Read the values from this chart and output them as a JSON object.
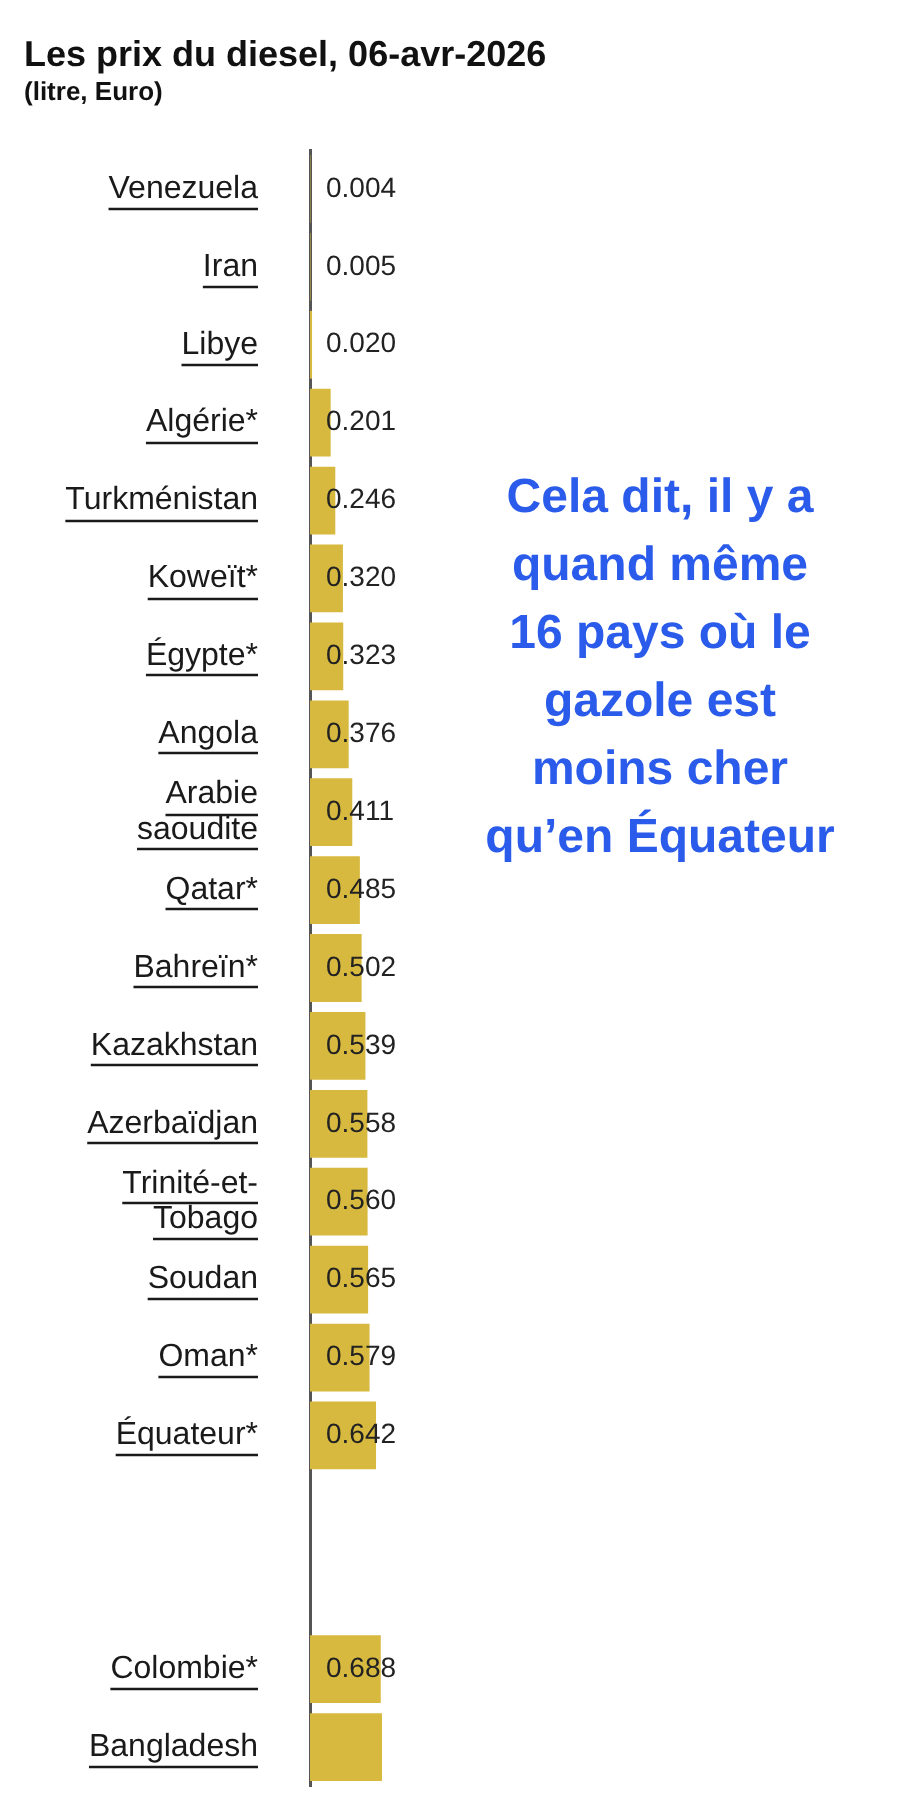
{
  "chart_data": {
    "type": "bar",
    "orientation": "horizontal",
    "title": "Les prix du diesel, 06-avr-2026",
    "subtitle": "(litre, Euro)",
    "categories": [
      "Venezuela",
      "Iran",
      "Libye",
      "Algérie*",
      "Turkménistan",
      "Koweït*",
      "Égypte*",
      "Angola",
      "Arabie saoudite",
      "Qatar*",
      "Bahreïn*",
      "Kazakhstan",
      "Azerbaïdjan",
      "Trinité-et-Tobago",
      "Soudan",
      "Oman*",
      "Équateur*",
      null,
      null,
      "Colombie*",
      "Bangladesh"
    ],
    "values": [
      0.004,
      0.005,
      0.02,
      0.201,
      0.246,
      0.32,
      0.323,
      0.376,
      0.411,
      0.485,
      0.502,
      0.539,
      0.558,
      0.56,
      0.565,
      0.579,
      0.642,
      null,
      null,
      0.688,
      0.7
    ],
    "value_labels": [
      "0.004",
      "0.005",
      "0.020",
      "0.201",
      "0.246",
      "0.320",
      "0.323",
      "0.376",
      "0.411",
      "0.485",
      "0.502",
      "0.539",
      "0.558",
      "0.560",
      "0.565",
      "0.579",
      "0.642",
      null,
      null,
      "0.688",
      null
    ],
    "color": "#d8b93f",
    "tick_labels": "y",
    "annotations": [
      "Cela dit, il y a quand même 16 pays où le gazole est moins cher qu’en Équateur"
    ]
  }
}
